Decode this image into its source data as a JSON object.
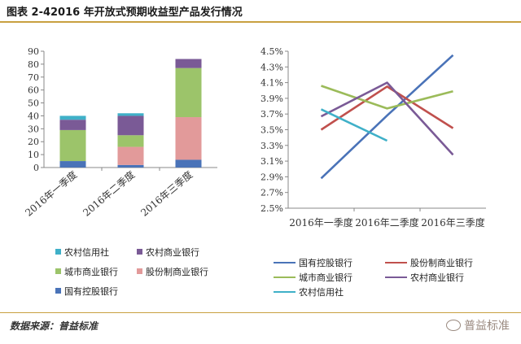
{
  "header": {
    "title": "图表 2-42016 年开放式预期收益型产品发行情况"
  },
  "footer": {
    "source": "数据来源：普益标准",
    "brand": "普益标准"
  },
  "colors": {
    "rule": "#c8a040"
  },
  "chart_data": [
    {
      "type": "bar",
      "stacked": true,
      "categories": [
        "2016年一季度",
        "2016年二季度",
        "2016年三季度"
      ],
      "ylim": [
        0,
        90
      ],
      "yticks": [
        0,
        10,
        20,
        30,
        40,
        50,
        60,
        70,
        80,
        90
      ],
      "grid": false,
      "legend_position": "bottom",
      "series": [
        {
          "name": "国有控股银行",
          "color": "#4a73b8",
          "values": [
            5,
            2,
            6
          ]
        },
        {
          "name": "股份制商业银行",
          "color": "#e29a9a",
          "values": [
            0,
            14,
            33
          ]
        },
        {
          "name": "城市商业银行",
          "color": "#9cc46a",
          "values": [
            24,
            9,
            38
          ]
        },
        {
          "name": "农村商业银行",
          "color": "#7a5a96",
          "values": [
            8,
            15,
            7
          ]
        },
        {
          "name": "农村信用社",
          "color": "#3fb0c8",
          "values": [
            3,
            2,
            0
          ]
        }
      ]
    },
    {
      "type": "line",
      "categories": [
        "2016年一季度",
        "2016年二季度",
        "2016年三季度"
      ],
      "ylim": [
        2.5,
        4.5
      ],
      "yticks": [
        "2.5%",
        "2.7%",
        "2.9%",
        "3.1%",
        "3.3%",
        "3.5%",
        "3.7%",
        "3.9%",
        "4.1%",
        "4.3%",
        "4.5%"
      ],
      "grid": false,
      "legend_position": "bottom",
      "series": [
        {
          "name": "国有控股银行",
          "color": "#4a73b8",
          "values": [
            2.88,
            3.68,
            4.45
          ]
        },
        {
          "name": "股份制商业银行",
          "color": "#c0504d",
          "values": [
            3.5,
            4.05,
            3.52
          ]
        },
        {
          "name": "城市商业银行",
          "color": "#9bbb59",
          "values": [
            4.06,
            3.77,
            3.99
          ]
        },
        {
          "name": "农村商业银行",
          "color": "#7a5a96",
          "values": [
            3.67,
            4.1,
            3.18
          ]
        },
        {
          "name": "农村信用社",
          "color": "#3fb0c8",
          "values": [
            3.76,
            3.36,
            null
          ]
        }
      ]
    }
  ]
}
